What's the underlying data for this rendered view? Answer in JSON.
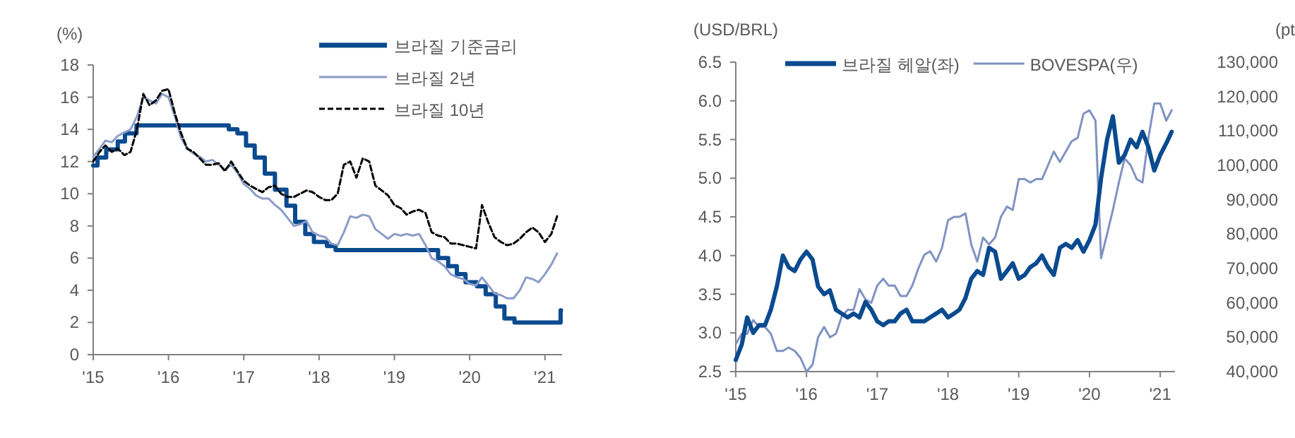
{
  "chart_data": [
    {
      "type": "line",
      "ylabel": "(%)",
      "legend": "top right",
      "xlim": [
        "2015-01-01",
        "2021-03-25"
      ],
      "xticks": [
        {
          "value": "2015-01-01",
          "label": "'15"
        },
        {
          "value": "2016-01-01",
          "label": "'16"
        },
        {
          "value": "2017-01-01",
          "label": "'17"
        },
        {
          "value": "2018-01-01",
          "label": "'18"
        },
        {
          "value": "2019-01-01",
          "label": "'19"
        },
        {
          "value": "2020-01-01",
          "label": "'20"
        },
        {
          "value": "2021-01-01",
          "label": "'21"
        }
      ],
      "ylim": [
        0,
        18
      ],
      "yticks": [
        0,
        2,
        4,
        6,
        8,
        10,
        12,
        14,
        16,
        18
      ],
      "series": [
        {
          "name": "브라질 기준금리",
          "type": "step",
          "color": "#0a4a8f",
          "x": [
            "2015-01-01",
            "2015-01-22",
            "2015-03-05",
            "2015-04-30",
            "2015-06-04",
            "2015-07-30",
            "2016-10-20",
            "2016-12-01",
            "2017-01-12",
            "2017-02-23",
            "2017-04-13",
            "2017-06-01",
            "2017-07-27",
            "2017-09-07",
            "2017-10-26",
            "2017-12-07",
            "2018-02-08",
            "2018-03-22",
            "2019-08-01",
            "2019-09-19",
            "2019-10-31",
            "2019-12-12",
            "2020-02-06",
            "2020-03-19",
            "2020-05-07",
            "2020-06-18",
            "2020-08-06",
            "2021-03-18",
            "2021-03-20"
          ],
          "values": [
            11.75,
            12.25,
            12.75,
            13.25,
            13.75,
            14.25,
            14.0,
            13.75,
            13.0,
            12.25,
            11.25,
            10.25,
            9.25,
            8.25,
            7.5,
            7.0,
            6.75,
            6.5,
            6.0,
            5.5,
            5.0,
            4.5,
            4.25,
            3.75,
            3.0,
            2.25,
            2.0,
            2.75,
            2.75
          ]
        },
        {
          "name": "브라질 2년",
          "color": "#8a9cc8",
          "x": [
            "2015-01",
            "2015-02",
            "2015-03",
            "2015-04",
            "2015-05",
            "2015-06",
            "2015-07",
            "2015-08",
            "2015-09",
            "2015-10",
            "2015-11",
            "2015-12",
            "2016-01",
            "2016-02",
            "2016-03",
            "2016-04",
            "2016-05",
            "2016-06",
            "2016-07",
            "2016-08",
            "2016-09",
            "2016-10",
            "2016-11",
            "2016-12",
            "2017-01",
            "2017-02",
            "2017-03",
            "2017-04",
            "2017-05",
            "2017-06",
            "2017-07",
            "2017-08",
            "2017-09",
            "2017-10",
            "2017-11",
            "2017-12",
            "2018-01",
            "2018-02",
            "2018-03",
            "2018-04",
            "2018-05",
            "2018-06",
            "2018-07",
            "2018-08",
            "2018-09",
            "2018-10",
            "2018-11",
            "2018-12",
            "2019-01",
            "2019-02",
            "2019-03",
            "2019-04",
            "2019-05",
            "2019-06",
            "2019-07",
            "2019-08",
            "2019-09",
            "2019-10",
            "2019-11",
            "2019-12",
            "2020-01",
            "2020-02",
            "2020-03",
            "2020-04",
            "2020-05",
            "2020-06",
            "2020-07",
            "2020-08",
            "2020-09",
            "2020-10",
            "2020-11",
            "2020-12",
            "2021-01",
            "2021-02",
            "2021-03"
          ],
          "values": [
            12.3,
            12.8,
            13.3,
            13.2,
            13.6,
            13.8,
            14.0,
            14.8,
            16.0,
            15.8,
            15.6,
            16.2,
            16.0,
            14.8,
            13.5,
            12.8,
            12.5,
            12.3,
            12.0,
            12.1,
            11.8,
            11.5,
            11.8,
            11.3,
            10.6,
            10.3,
            9.9,
            9.7,
            9.7,
            9.3,
            9.0,
            8.5,
            8.0,
            8.1,
            8.3,
            7.6,
            7.4,
            7.3,
            6.9,
            6.8,
            7.6,
            8.6,
            8.5,
            8.7,
            8.6,
            7.8,
            7.5,
            7.2,
            7.5,
            7.4,
            7.5,
            7.4,
            7.5,
            6.8,
            6.0,
            5.8,
            5.5,
            5.0,
            4.8,
            4.7,
            4.4,
            4.3,
            4.8,
            4.3,
            3.8,
            3.7,
            3.5,
            3.5,
            4.0,
            4.8,
            4.7,
            4.5,
            5.0,
            5.6,
            6.3
          ]
        },
        {
          "name": "브라질 10년",
          "color": "#000000",
          "line_style": "dashed",
          "x": [
            "2015-01",
            "2015-02",
            "2015-03",
            "2015-04",
            "2015-05",
            "2015-06",
            "2015-07",
            "2015-08",
            "2015-09",
            "2015-10",
            "2015-11",
            "2015-12",
            "2016-01",
            "2016-02",
            "2016-03",
            "2016-04",
            "2016-05",
            "2016-06",
            "2016-07",
            "2016-08",
            "2016-09",
            "2016-10",
            "2016-11",
            "2016-12",
            "2017-01",
            "2017-02",
            "2017-03",
            "2017-04",
            "2017-05",
            "2017-06",
            "2017-07",
            "2017-08",
            "2017-09",
            "2017-10",
            "2017-11",
            "2017-12",
            "2018-01",
            "2018-02",
            "2018-03",
            "2018-04",
            "2018-05",
            "2018-06",
            "2018-07",
            "2018-08",
            "2018-09",
            "2018-10",
            "2018-11",
            "2018-12",
            "2019-01",
            "2019-02",
            "2019-03",
            "2019-04",
            "2019-05",
            "2019-06",
            "2019-07",
            "2019-08",
            "2019-09",
            "2019-10",
            "2019-11",
            "2019-12",
            "2020-01",
            "2020-02",
            "2020-03",
            "2020-04",
            "2020-05",
            "2020-06",
            "2020-07",
            "2020-08",
            "2020-09",
            "2020-10",
            "2020-11",
            "2020-12",
            "2021-01",
            "2021-02",
            "2021-03"
          ],
          "values": [
            12.0,
            12.6,
            13.0,
            12.6,
            12.8,
            12.4,
            12.6,
            14.0,
            16.2,
            15.5,
            15.8,
            16.4,
            16.5,
            15.0,
            13.8,
            12.8,
            12.6,
            12.2,
            11.8,
            11.8,
            11.9,
            11.4,
            12.0,
            11.4,
            10.8,
            10.5,
            10.3,
            10.1,
            10.4,
            10.5,
            10.0,
            9.8,
            9.8,
            10.0,
            10.2,
            10.1,
            9.8,
            9.6,
            9.6,
            10.0,
            11.8,
            12.0,
            11.0,
            12.2,
            12.0,
            10.5,
            10.2,
            9.9,
            9.3,
            9.1,
            8.7,
            8.9,
            9.0,
            8.8,
            7.6,
            7.4,
            7.3,
            6.9,
            6.9,
            6.8,
            6.7,
            6.6,
            9.3,
            8.2,
            7.3,
            7.0,
            6.8,
            6.9,
            7.2,
            7.6,
            7.9,
            7.6,
            7.0,
            7.5,
            8.6
          ]
        }
      ]
    },
    {
      "type": "line",
      "ylabel": "(USD/BRL)",
      "y2label": "(pt",
      "legend": "top",
      "xlim": [
        "2015-01-01",
        "2021-03-18"
      ],
      "xticks": [
        {
          "value": "2015-01-01",
          "label": "'15"
        },
        {
          "value": "2016-01-01",
          "label": "'16"
        },
        {
          "value": "2017-01-01",
          "label": "'17"
        },
        {
          "value": "2018-01-01",
          "label": "'18"
        },
        {
          "value": "2019-01-01",
          "label": "'19"
        },
        {
          "value": "2020-01-01",
          "label": "'20"
        },
        {
          "value": "2021-01-01",
          "label": "'21"
        }
      ],
      "ylim": [
        2.5,
        6.5
      ],
      "yticks": [
        2.5,
        {
          "value": 3,
          "label": "3.0"
        },
        3.5,
        {
          "value": 4,
          "label": "4.0"
        },
        4.5,
        {
          "value": 5,
          "label": "5.0"
        },
        5.5,
        {
          "value": 6,
          "label": "6.0"
        },
        6.5
      ],
      "y2lim": [
        40000,
        130000
      ],
      "y2ticks": [
        {
          "value": 40000,
          "label": "40,000"
        },
        {
          "value": 50000,
          "label": "50,000"
        },
        {
          "value": 60000,
          "label": "60,000"
        },
        {
          "value": 70000,
          "label": "70,000"
        },
        {
          "value": 80000,
          "label": "80,000"
        },
        {
          "value": 90000,
          "label": "90,000"
        },
        {
          "value": 100000,
          "label": "100,000"
        },
        {
          "value": 110000,
          "label": "110,000"
        },
        {
          "value": 120000,
          "label": "120,000"
        },
        {
          "value": 130000,
          "label": "130,000"
        }
      ],
      "series": [
        {
          "name": "BOVESPA(우)",
          "axis": "y2",
          "color": "#7f93c2",
          "x": [
            "2015-01",
            "2015-02",
            "2015-03",
            "2015-04",
            "2015-05",
            "2015-06",
            "2015-07",
            "2015-08",
            "2015-09",
            "2015-10",
            "2015-11",
            "2015-12",
            "2016-01",
            "2016-02",
            "2016-03",
            "2016-04",
            "2016-05",
            "2016-06",
            "2016-07",
            "2016-08",
            "2016-09",
            "2016-10",
            "2016-11",
            "2016-12",
            "2017-01",
            "2017-02",
            "2017-03",
            "2017-04",
            "2017-05",
            "2017-06",
            "2017-07",
            "2017-08",
            "2017-09",
            "2017-10",
            "2017-11",
            "2017-12",
            "2018-01",
            "2018-02",
            "2018-03",
            "2018-04",
            "2018-05",
            "2018-06",
            "2018-07",
            "2018-08",
            "2018-09",
            "2018-10",
            "2018-11",
            "2018-12",
            "2019-01",
            "2019-02",
            "2019-03",
            "2019-04",
            "2019-05",
            "2019-06",
            "2019-07",
            "2019-08",
            "2019-09",
            "2019-10",
            "2019-11",
            "2019-12",
            "2020-01",
            "2020-02",
            "2020-03",
            "2020-04",
            "2020-05",
            "2020-06",
            "2020-07",
            "2020-08",
            "2020-09",
            "2020-10",
            "2020-11",
            "2020-12",
            "2021-01",
            "2021-02",
            "2021-03"
          ],
          "values": [
            48000,
            51000,
            51000,
            55000,
            53000,
            53000,
            51000,
            46000,
            46000,
            47000,
            46000,
            44000,
            40000,
            42000,
            50000,
            53000,
            50000,
            51000,
            56000,
            58000,
            58000,
            64000,
            61000,
            60000,
            65000,
            67000,
            65000,
            65000,
            62000,
            62000,
            65000,
            70000,
            74000,
            75000,
            72000,
            76000,
            84000,
            85000,
            85000,
            86000,
            77000,
            72000,
            79000,
            77000,
            79000,
            85000,
            88000,
            87000,
            96000,
            96000,
            95000,
            96000,
            96000,
            100000,
            104000,
            101000,
            104000,
            107000,
            108000,
            115000,
            116000,
            113000,
            73000,
            80000,
            87000,
            95000,
            102000,
            100000,
            96000,
            95000,
            108000,
            118000,
            118000,
            113000,
            116000
          ]
        },
        {
          "name": "브라질 헤알(좌)",
          "color": "#0a4a8f",
          "x": [
            "2015-01",
            "2015-02",
            "2015-03",
            "2015-04",
            "2015-05",
            "2015-06",
            "2015-07",
            "2015-08",
            "2015-09",
            "2015-10",
            "2015-11",
            "2015-12",
            "2016-01",
            "2016-02",
            "2016-03",
            "2016-04",
            "2016-05",
            "2016-06",
            "2016-07",
            "2016-08",
            "2016-09",
            "2016-10",
            "2016-11",
            "2016-12",
            "2017-01",
            "2017-02",
            "2017-03",
            "2017-04",
            "2017-05",
            "2017-06",
            "2017-07",
            "2017-08",
            "2017-09",
            "2017-10",
            "2017-11",
            "2017-12",
            "2018-01",
            "2018-02",
            "2018-03",
            "2018-04",
            "2018-05",
            "2018-06",
            "2018-07",
            "2018-08",
            "2018-09",
            "2018-10",
            "2018-11",
            "2018-12",
            "2019-01",
            "2019-02",
            "2019-03",
            "2019-04",
            "2019-05",
            "2019-06",
            "2019-07",
            "2019-08",
            "2019-09",
            "2019-10",
            "2019-11",
            "2019-12",
            "2020-01",
            "2020-02",
            "2020-03",
            "2020-04",
            "2020-05",
            "2020-06",
            "2020-07",
            "2020-08",
            "2020-09",
            "2020-10",
            "2020-11",
            "2020-12",
            "2021-01",
            "2021-02",
            "2021-03"
          ],
          "values": [
            2.65,
            2.85,
            3.2,
            3.0,
            3.1,
            3.1,
            3.3,
            3.6,
            4.0,
            3.85,
            3.8,
            3.95,
            4.05,
            3.95,
            3.6,
            3.5,
            3.55,
            3.3,
            3.25,
            3.2,
            3.25,
            3.2,
            3.4,
            3.3,
            3.15,
            3.1,
            3.15,
            3.15,
            3.25,
            3.3,
            3.15,
            3.15,
            3.15,
            3.2,
            3.25,
            3.3,
            3.2,
            3.25,
            3.3,
            3.45,
            3.7,
            3.8,
            3.75,
            4.1,
            4.05,
            3.7,
            3.8,
            3.9,
            3.7,
            3.75,
            3.85,
            3.9,
            4.0,
            3.85,
            3.75,
            4.1,
            4.15,
            4.1,
            4.2,
            4.05,
            4.2,
            4.4,
            5.0,
            5.5,
            5.8,
            5.2,
            5.3,
            5.5,
            5.4,
            5.6,
            5.4,
            5.1,
            5.3,
            5.45,
            5.6
          ]
        }
      ]
    }
  ]
}
